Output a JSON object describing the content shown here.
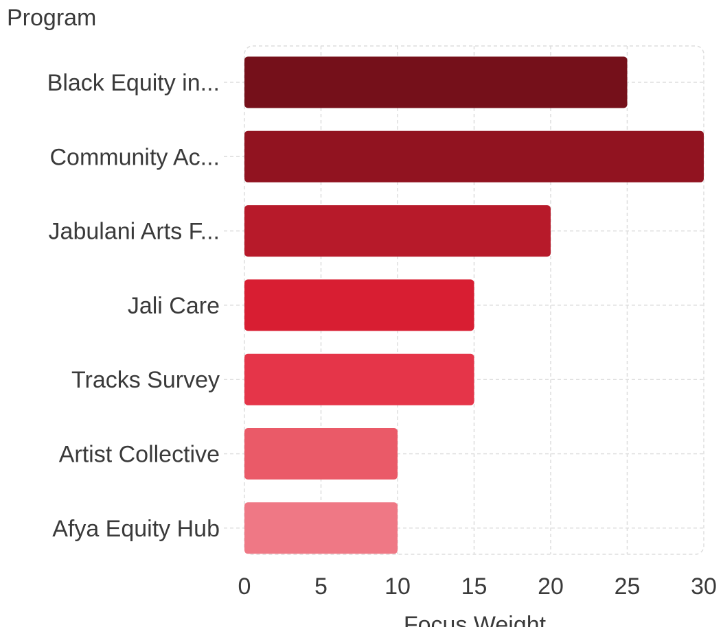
{
  "chart_data": {
    "type": "bar",
    "orientation": "horizontal",
    "title": "",
    "ylabel": "Program",
    "xlabel": "Focus Weight",
    "categories": [
      "Black Equity in...",
      "Community Ac...",
      "Jabulani Arts F...",
      "Jali Care",
      "Tracks Survey",
      "Artist Collective",
      "Afya Equity Hub"
    ],
    "values": [
      25,
      30,
      20,
      15,
      15,
      10,
      10
    ],
    "xlim": [
      0,
      30
    ],
    "xticks": [
      "0",
      "5",
      "10",
      "15",
      "20",
      "25",
      "30"
    ],
    "grid": true,
    "legend": "none",
    "colors": [
      "#75101a",
      "#911320",
      "#b71a2a",
      "#d81e32",
      "#e53549",
      "#ea5a68",
      "#ef7885"
    ],
    "grid_color": "#dddddd",
    "text_color": "#3a3a3a"
  }
}
